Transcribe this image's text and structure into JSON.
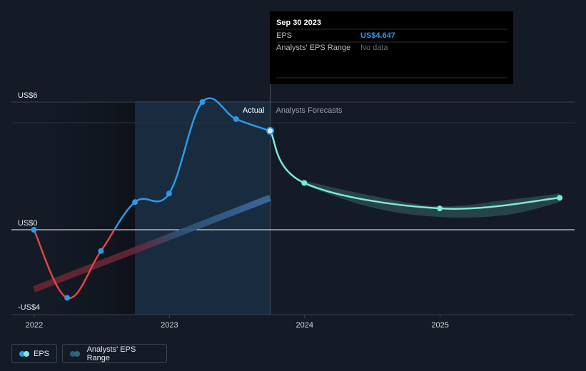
{
  "chart_data": {
    "type": "line",
    "title": "",
    "xlabel": "",
    "ylabel": "",
    "x_ticks": [
      "2022",
      "2023",
      "2024",
      "2025"
    ],
    "y_ticks": [
      {
        "label": "US$6",
        "value": 6
      },
      {
        "label": "US$0",
        "value": 0
      },
      {
        "label": "-US$4",
        "value": -4
      }
    ],
    "ylim": [
      -4,
      6.8
    ],
    "xlim": [
      "2021-12-01",
      "2025-11-20"
    ],
    "grid": false,
    "legend_position": "bottom-left",
    "section_labels": {
      "actual": "Actual",
      "forecast": "Analysts Forecasts"
    },
    "highlight_region": [
      "2022-09-30",
      "2023-09-30"
    ],
    "series": [
      {
        "name": "EPS",
        "kind": "actual",
        "points": [
          {
            "x": "2021-12-31",
            "y": 0.0
          },
          {
            "x": "2022-03-31",
            "y": -3.2
          },
          {
            "x": "2022-06-30",
            "y": -1.0
          },
          {
            "x": "2022-09-30",
            "y": 1.3
          },
          {
            "x": "2022-12-31",
            "y": 1.7
          },
          {
            "x": "2023-03-31",
            "y": 6.0
          },
          {
            "x": "2023-06-30",
            "y": 5.2
          },
          {
            "x": "2023-09-30",
            "y": 4.647
          }
        ]
      },
      {
        "name": "EPS",
        "kind": "forecast",
        "points": [
          {
            "x": "2023-09-30",
            "y": 4.647
          },
          {
            "x": "2023-12-31",
            "y": 2.2
          },
          {
            "x": "2024-12-31",
            "y": 1.0
          },
          {
            "x": "2025-11-20",
            "y": 1.5
          }
        ]
      },
      {
        "name": "Analysts' EPS Range",
        "kind": "range",
        "points": [
          {
            "x": "2023-12-31",
            "low": 2.1,
            "high": 2.3
          },
          {
            "x": "2024-06-30",
            "low": 1.05,
            "high": 1.6
          },
          {
            "x": "2024-12-31",
            "low": 0.6,
            "high": 1.1
          },
          {
            "x": "2025-06-30",
            "low": 0.7,
            "high": 1.4
          },
          {
            "x": "2025-11-20",
            "low": 1.3,
            "high": 1.7
          }
        ]
      },
      {
        "name": "trend",
        "kind": "trend",
        "points": [
          {
            "x": "2021-12-31",
            "y": -2.8
          },
          {
            "x": "2023-09-30",
            "y": 1.5
          }
        ]
      }
    ]
  },
  "tooltip": {
    "date": "Sep 30 2023",
    "rows": [
      {
        "label": "EPS",
        "value": "US$4.647"
      },
      {
        "label": "Analysts' EPS Range",
        "value": "No data"
      }
    ]
  },
  "legend": {
    "items": [
      {
        "label": "EPS",
        "colors": [
          "#2d9ae6",
          "#7ee8d8"
        ]
      },
      {
        "label": "Analysts' EPS Range",
        "colors": [
          "#2d5c86",
          "#2a6e6b"
        ]
      }
    ]
  },
  "colors": {
    "actual_positive": "#2d9ae6",
    "actual_negative": "#e04646",
    "forecast": "#7ee8d8",
    "range_fill": "#2b4a4d",
    "trend": "#3a5f86",
    "trend_negative": "#7a2c36",
    "highlight": "#1b3148",
    "past_shade": "#10151d"
  }
}
